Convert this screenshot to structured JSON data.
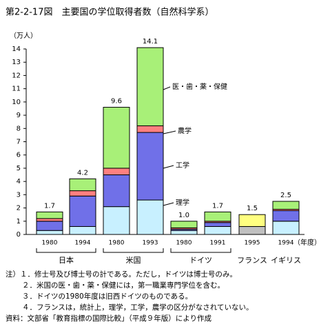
{
  "chart_data": {
    "type": "stacked-bar",
    "title": "第2-2-17図　主要国の学位取得者数（自然科学系）",
    "y_unit": "（万人）",
    "x_unit": "（年度）",
    "ylim": [
      0,
      14
    ],
    "yticks": [
      0,
      1,
      2,
      3,
      4,
      5,
      6,
      7,
      8,
      9,
      10,
      11,
      12,
      13,
      14
    ],
    "groups": [
      {
        "label": "日本",
        "categories": [
          "1980",
          "1994"
        ]
      },
      {
        "label": "米国",
        "categories": [
          "1980",
          "1993"
        ]
      },
      {
        "label": "ドイツ",
        "categories": [
          "1980",
          "1991"
        ]
      },
      {
        "label": "フランス",
        "categories": [
          "1995"
        ]
      },
      {
        "label": "イギリス",
        "categories": [
          "1994"
        ]
      }
    ],
    "series": [
      {
        "name": "理学",
        "color": "#c8f0ff",
        "values": [
          0.3,
          0.6,
          2.1,
          2.6,
          0.3,
          0.6,
          null,
          1.0
        ]
      },
      {
        "name": "工学",
        "color": "#7070e8",
        "values": [
          0.7,
          2.3,
          2.4,
          5.1,
          0.1,
          0.3,
          null,
          0.8
        ]
      },
      {
        "name": "農学",
        "color": "#ff8080",
        "values": [
          0.2,
          0.4,
          0.5,
          0.5,
          0.1,
          0.1,
          null,
          0.1
        ]
      },
      {
        "name": "医・歯・薬・保健",
        "color": "#a8f078",
        "values": [
          0.5,
          0.9,
          4.6,
          5.9,
          0.5,
          0.7,
          null,
          0.6
        ]
      },
      {
        "color": "#c0c0c0",
        "values": [
          null,
          null,
          null,
          null,
          null,
          null,
          0.6,
          null
        ]
      },
      {
        "color": "#ffff80",
        "values": [
          null,
          null,
          null,
          null,
          null,
          null,
          0.9,
          null
        ]
      }
    ],
    "totals": [
      1.7,
      4.2,
      9.6,
      14.1,
      1.0,
      1.7,
      1.5,
      2.5
    ],
    "total_labels": [
      "1.7",
      "4.2",
      "9.6",
      "14.1",
      "1.0",
      "1.7",
      "1.5",
      "2.5"
    ],
    "notes": [
      "注）１．修士号及び博士号の計である。ただし，ドイツは博士号のみ。",
      "２．米国の医・歯・薬・保健には，第一職業専門学位を含む。",
      "３．ドイツの1980年度は旧西ドイツのものである。",
      "４．フランスは，統計上，理学，工学，農学の区分がなされていない。",
      "資料：文部省「教育指標の国際比較」（平成９年版）により作成"
    ]
  }
}
